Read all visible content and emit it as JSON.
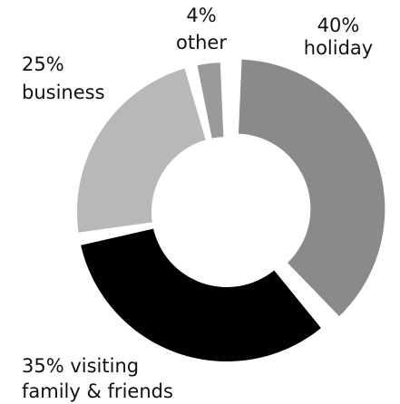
{
  "chart_data": {
    "type": "pie",
    "variant": "donut",
    "slices": [
      {
        "label": "holiday",
        "value": 40,
        "value_text": "40%",
        "color": "#8a8a8d"
      },
      {
        "label": "visiting family & friends",
        "value": 35,
        "value_text": "35%",
        "color": "#000000"
      },
      {
        "label": "business",
        "value": 25,
        "value_text": "25%",
        "color": "#b8b8b9"
      },
      {
        "label": "other",
        "value": 4,
        "value_text": "4%",
        "color": "#9a9a9c"
      }
    ],
    "labels": {
      "holiday": {
        "line1": "40%",
        "line2": "holiday"
      },
      "visiting": {
        "line1": "35% visiting",
        "line2": "family & friends"
      },
      "business": {
        "line1": "25%",
        "line2": "business"
      },
      "other": {
        "line1": "4%",
        "line2": "other"
      }
    },
    "legend": "none",
    "grid": false
  }
}
